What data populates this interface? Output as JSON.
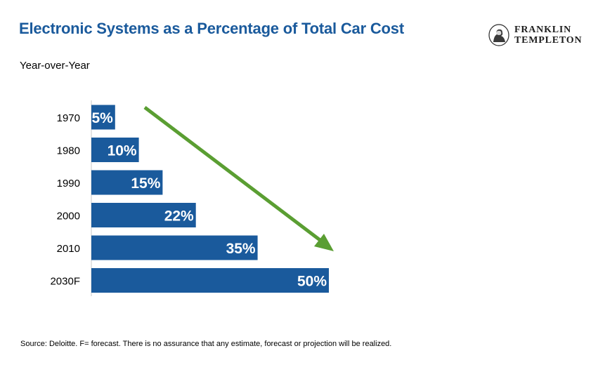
{
  "header": {
    "title": "Electronic Systems as a Percentage of Total Car Cost",
    "subtitle": "Year-over-Year"
  },
  "logo": {
    "line1": "FRANKLIN",
    "line2": "TEMPLETON",
    "icon": "benjamin-franklin-portrait-icon"
  },
  "colors": {
    "bar": "#1a5a9c",
    "bar_label": "#ffffff",
    "arrow": "#5a9e32",
    "title": "#1a5a9c"
  },
  "chart_data": {
    "type": "bar",
    "orientation": "horizontal",
    "categories": [
      "1970",
      "1980",
      "1990",
      "2000",
      "2010",
      "2030F"
    ],
    "values": [
      5,
      10,
      15,
      22,
      35,
      50
    ],
    "data_labels": [
      "5%",
      "10%",
      "15%",
      "22%",
      "35%",
      "50%"
    ],
    "unit": "%",
    "xlim": [
      0,
      50
    ],
    "grid": false,
    "legend": "none",
    "annotation": "green-trend-arrow"
  },
  "footnote": "Source: Deloitte. F= forecast. There is no assurance that any estimate, forecast or projection will be realized."
}
